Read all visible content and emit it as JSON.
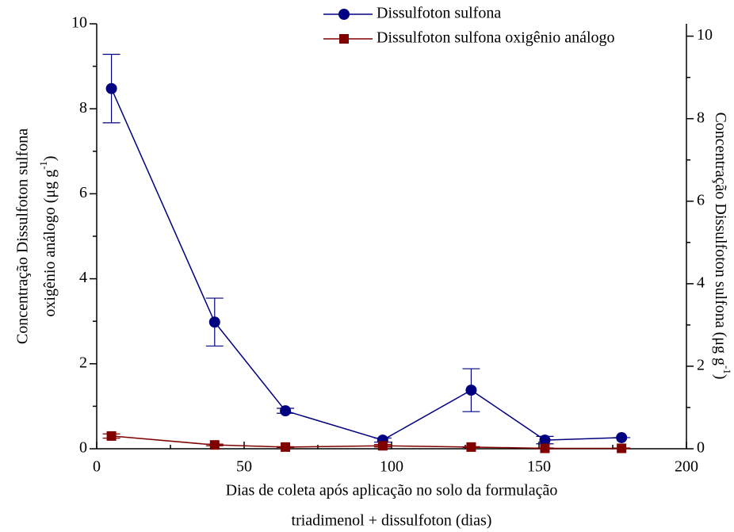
{
  "chart_data": {
    "type": "line",
    "xlabel": [
      "Dias de coleta após aplicação no solo da formulação",
      "triadimenol + dissulfoton (dias)"
    ],
    "ylabel": [
      "Concentração Dissulfoton sulfona",
      "oxigênio análogo (μg g",
      "-1",
      ")"
    ],
    "y2label": [
      "Concentração Dissulfoton sulfona (μg g",
      "-1",
      ")"
    ],
    "xlim": [
      0,
      200
    ],
    "xticks": [
      0,
      50,
      100,
      150,
      200
    ],
    "xticks_minor": [
      25,
      75,
      125,
      175
    ],
    "ylim": [
      0,
      10
    ],
    "yticks": [
      0,
      2,
      4,
      6,
      8,
      10
    ],
    "yticks_minor": [
      1,
      3,
      5,
      7,
      9
    ],
    "y2lim": [
      0,
      10.3
    ],
    "y2ticks": [
      0,
      2,
      4,
      6,
      8,
      10
    ],
    "y2ticks_minor": [
      1,
      3,
      5,
      7,
      9
    ],
    "series": [
      {
        "name": "Dissulfoton sulfona",
        "color": "#000080",
        "marker": "circle",
        "axis": "y2",
        "x": [
          5,
          40,
          64,
          97,
          127,
          152,
          178
        ],
        "values": [
          8.73,
          3.07,
          0.92,
          0.21,
          1.42,
          0.21,
          0.27
        ],
        "errors": [
          0.83,
          0.58,
          0.06,
          0.05,
          0.52,
          0.09,
          0
        ]
      },
      {
        "name": "Dissulfoton sulfona oxigênio análogo",
        "color": "#800000",
        "marker": "square",
        "axis": "y",
        "x": [
          5,
          40,
          64,
          97,
          127,
          152,
          178
        ],
        "values": [
          0.3,
          0.09,
          0.04,
          0.07,
          0.04,
          0.01,
          0.01
        ],
        "errors": [
          0.05,
          0.02,
          0.01,
          0.03,
          0.01,
          0.01,
          0.01
        ]
      }
    ],
    "legend": "top"
  }
}
